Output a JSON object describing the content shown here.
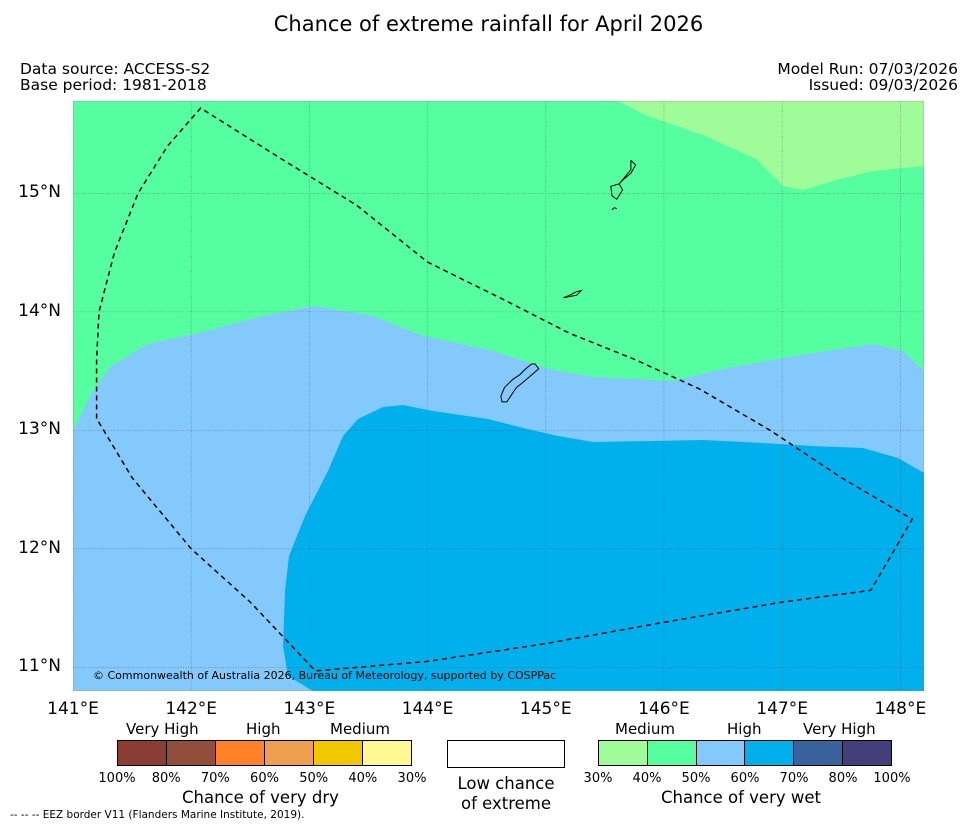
{
  "title": "Chance of extreme rainfall for April 2026",
  "meta": {
    "data_source": "Data source: ACCESS-S2",
    "base_period": "Base period: 1981-2018",
    "model_run": "Model Run: 07/03/2026",
    "issued": "Issued: 09/03/2026"
  },
  "map": {
    "copyright": "© Commonwealth of Australia 2026, Bureau of Meteorology, supported by COSPPac",
    "lon_range": [
      141.0,
      148.2
    ],
    "lat_range": [
      10.8,
      15.78
    ],
    "lon_ticks": [
      "141°E",
      "142°E",
      "143°E",
      "144°E",
      "145°E",
      "146°E",
      "147°E",
      "148°E"
    ],
    "lat_ticks": [
      "15°N",
      "14°N",
      "13°N",
      "12°N",
      "11°N"
    ],
    "grid": true,
    "eez_border_lonlat": [
      [
        141.2,
        13.1
      ],
      [
        141.2,
        13.25
      ],
      [
        141.2,
        13.6
      ],
      [
        141.22,
        14.0
      ],
      [
        141.35,
        14.5
      ],
      [
        141.55,
        15.0
      ],
      [
        141.8,
        15.4
      ],
      [
        142.08,
        15.72
      ],
      [
        142.75,
        15.3
      ],
      [
        143.4,
        14.9
      ],
      [
        144.0,
        14.42
      ],
      [
        144.65,
        14.1
      ],
      [
        145.2,
        13.82
      ],
      [
        145.75,
        13.6
      ],
      [
        146.3,
        13.35
      ],
      [
        146.9,
        13.0
      ],
      [
        147.5,
        12.6
      ],
      [
        148.1,
        12.25
      ],
      [
        147.75,
        11.65
      ],
      [
        147.0,
        11.55
      ],
      [
        146.0,
        11.38
      ],
      [
        145.0,
        11.2
      ],
      [
        144.0,
        11.05
      ],
      [
        143.05,
        10.97
      ],
      [
        142.5,
        11.55
      ],
      [
        142.0,
        12.0
      ],
      [
        141.5,
        12.6
      ],
      [
        141.2,
        13.1
      ]
    ],
    "islands_lonlat": [
      [
        [
          145.72,
          15.28
        ],
        [
          145.76,
          15.24
        ],
        [
          145.72,
          15.17
        ],
        [
          145.66,
          15.12
        ],
        [
          145.62,
          15.08
        ],
        [
          145.67,
          15.14
        ],
        [
          145.72,
          15.2
        ],
        [
          145.72,
          15.28
        ]
      ],
      [
        [
          145.62,
          15.08
        ],
        [
          145.65,
          15.03
        ],
        [
          145.6,
          14.95
        ],
        [
          145.56,
          14.98
        ],
        [
          145.55,
          15.06
        ],
        [
          145.62,
          15.08
        ]
      ],
      [
        [
          145.56,
          14.86
        ],
        [
          145.58,
          14.88
        ],
        [
          145.6,
          14.87
        ]
      ],
      [
        [
          145.15,
          14.12
        ],
        [
          145.2,
          14.14
        ],
        [
          145.26,
          14.17
        ],
        [
          145.3,
          14.18
        ],
        [
          145.26,
          14.14
        ],
        [
          145.2,
          14.13
        ],
        [
          145.15,
          14.12
        ]
      ],
      [
        [
          144.88,
          13.56
        ],
        [
          144.83,
          13.52
        ],
        [
          144.78,
          13.47
        ],
        [
          144.72,
          13.43
        ],
        [
          144.65,
          13.36
        ],
        [
          144.62,
          13.29
        ],
        [
          144.63,
          13.24
        ],
        [
          144.67,
          13.24
        ],
        [
          144.71,
          13.3
        ],
        [
          144.75,
          13.36
        ],
        [
          144.8,
          13.4
        ],
        [
          144.86,
          13.45
        ],
        [
          144.94,
          13.52
        ],
        [
          144.91,
          13.56
        ],
        [
          144.88,
          13.56
        ]
      ]
    ],
    "regions": [
      {
        "category": "40-50% chance of very wet (Medium)",
        "color": "#55ff9f"
      },
      {
        "category": "30-40% chance of very wet (Medium)",
        "color": "#9ffc98"
      },
      {
        "category": "50-60% chance of very wet (High)",
        "color": "#84c9fb"
      },
      {
        "category": "60-70% chance of very wet (High)",
        "color": "#00b0ec"
      }
    ]
  },
  "legend": {
    "dry": {
      "title": "Chance of very dry",
      "labels": [
        "Very High",
        "High",
        "Medium"
      ],
      "ticks": [
        "100%",
        "80%",
        "70%",
        "60%",
        "50%",
        "40%",
        "30%"
      ],
      "colors": [
        "#8b3d33",
        "#904e3b",
        "#ff8128",
        "#efa04f",
        "#f1c700",
        "#fff993"
      ]
    },
    "low": {
      "line1": "Low chance",
      "line2": "of extreme"
    },
    "wet": {
      "title": "Chance of very wet",
      "labels": [
        "Medium",
        "High",
        "Very High"
      ],
      "ticks": [
        "30%",
        "40%",
        "50%",
        "60%",
        "70%",
        "80%",
        "100%"
      ],
      "colors": [
        "#9ffc98",
        "#55ff9f",
        "#84c9fb",
        "#00b0ec",
        "#3a639e",
        "#433f78"
      ]
    }
  },
  "footnote": "--  --  -- EEZ border V11 (Flanders Marine Institute, 2019)."
}
